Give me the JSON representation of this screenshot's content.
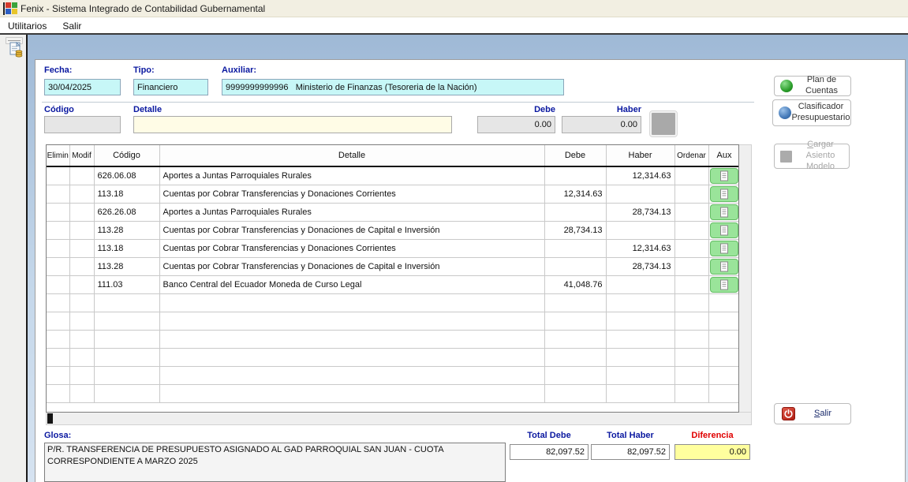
{
  "window": {
    "title": "Fenix - Sistema Integrado de Contabilidad Gubernamental",
    "app_icon": "windows-logo-icon"
  },
  "menu": {
    "items": [
      {
        "label": "Utilitarios"
      },
      {
        "label": "Salir"
      }
    ]
  },
  "toolbar": {
    "journal_icon": "journal-entry-icon"
  },
  "form": {
    "fecha": {
      "label": "Fecha:",
      "value": "30/04/2025"
    },
    "tipo": {
      "label": "Tipo:",
      "value": "Financiero"
    },
    "auxiliar": {
      "label": "Auxiliar:",
      "value": "9999999999996   Ministerio de Finanzas (Tesoreria de la Nación)"
    }
  },
  "entry": {
    "codigo_label": "Código",
    "detalle_label": "Detalle",
    "debe_label": "Debe",
    "haber_label": "Haber",
    "codigo_value": "",
    "detalle_value": "",
    "debe_value": "0.00",
    "haber_value": "0.00"
  },
  "table": {
    "headers": [
      "Elimin",
      "Modif",
      "Código",
      "Detalle",
      "Debe",
      "Haber",
      "Ordenar",
      "Aux"
    ],
    "rows": [
      {
        "codigo": "626.06.08",
        "detalle": "Aportes a Juntas Parroquiales Rurales",
        "debe": "",
        "haber": "12,314.63"
      },
      {
        "codigo": "113.18",
        "detalle": "Cuentas por Cobrar Transferencias y Donaciones Corrientes",
        "debe": "12,314.63",
        "haber": ""
      },
      {
        "codigo": "626.26.08",
        "detalle": "Aportes a Juntas Parroquiales Rurales",
        "debe": "",
        "haber": "28,734.13"
      },
      {
        "codigo": "113.28",
        "detalle": "Cuentas por Cobrar Transferencias y Donaciones de Capital e Inversión",
        "debe": "28,734.13",
        "haber": ""
      },
      {
        "codigo": "113.18",
        "detalle": "Cuentas por Cobrar Transferencias y Donaciones Corrientes",
        "debe": "",
        "haber": "12,314.63"
      },
      {
        "codigo": "113.28",
        "detalle": "Cuentas por Cobrar Transferencias y Donaciones de Capital e Inversión",
        "debe": "",
        "haber": "28,734.13"
      },
      {
        "codigo": "111.03",
        "detalle": "Banco Central del Ecuador Moneda de Curso Legal",
        "debe": "41,048.76",
        "haber": ""
      }
    ],
    "empty_rows": 6
  },
  "actions": {
    "plan_de_cuentas": {
      "label": "Plan de Cuentas",
      "icon": "green-sphere-icon"
    },
    "clasificador": {
      "line1": "Clasificador",
      "line2": "Presupuestario",
      "icon": "blue-sphere-icon"
    },
    "cargar_asiento": {
      "accel": "C",
      "line1_rest": "argar Asiento",
      "line2": "Modelo",
      "disabled": true,
      "icon": "gray-square-icon"
    },
    "salir": {
      "accel": "S",
      "rest": "alir",
      "icon": "power-icon"
    }
  },
  "footer": {
    "glosa_label": "Glosa:",
    "glosa_value": "P/R. TRANSFERENCIA DE PRESUPUESTO ASIGNADO AL GAD PARROQUIAL SAN JUAN - CUOTA CORRESPONDIENTE A MARZO 2025",
    "total_debe_label": "Total Debe",
    "total_debe_value": "82,097.52",
    "total_haber_label": "Total Haber",
    "total_haber_value": "82,097.52",
    "diferencia_label": "Diferencia",
    "diferencia_value": "0.00"
  },
  "colors": {
    "titlebar_bg": "#f2efe2",
    "workspace_gradient_top": "#9fb9d6",
    "workspace_gradient_bottom": "#d6e3f1",
    "label_navy": "#0a18a0",
    "diferencia_red": "#e00000",
    "field_cyan": "#c7f7f7",
    "field_ivory": "#fffce6",
    "field_gray": "#e6e6e6",
    "diferencia_yellow": "#ffff9e",
    "aux_button_green": "#9ae49a"
  }
}
